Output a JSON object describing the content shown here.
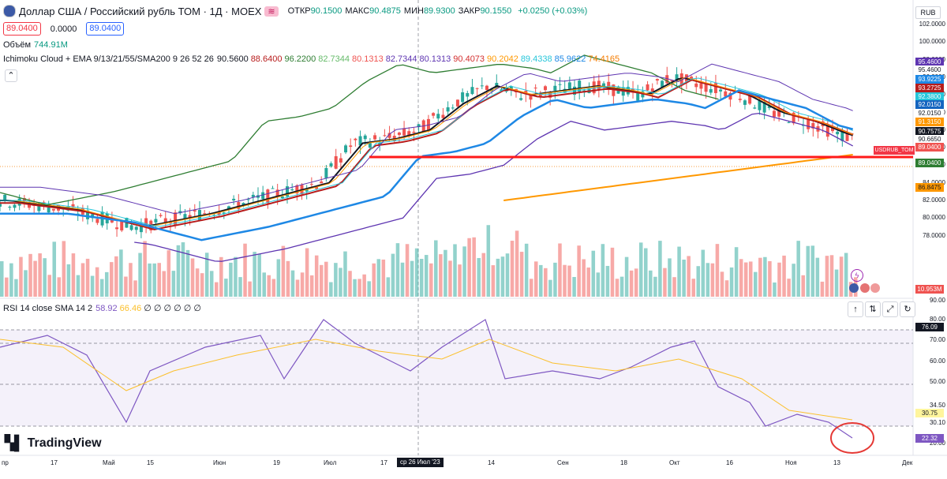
{
  "header": {
    "title": "Доллар США / Российский рубль ТОМ · 1Д · MOEX",
    "ohlc": [
      {
        "label": "ОТКР",
        "value": "90.1500"
      },
      {
        "label": "МАКС",
        "value": "90.4875"
      },
      {
        "label": "МИН",
        "value": "89.9300"
      },
      {
        "label": "ЗАКР",
        "value": "90.1550"
      }
    ],
    "change": "+0.0250 (+0.03%)",
    "bid": "89.0400",
    "spread": "0.0000",
    "ask": "89.0400",
    "tradingview_badge": "≋"
  },
  "indicators": {
    "volume_label": "Объём",
    "volume_value": "744.91M",
    "ichimoku_label": "Ichimoku Cloud + EMA 9/13/21/55/SMA200 9 26 52 26",
    "ichimoku_values": [
      {
        "v": "90.5600",
        "c": "#131722"
      },
      {
        "v": "88.6400",
        "c": "#b71c1c"
      },
      {
        "v": "96.2200",
        "c": "#2e7d32"
      },
      {
        "v": "82.7344",
        "c": "#66bb6a"
      },
      {
        "v": "80.1313",
        "c": "#ef5350"
      },
      {
        "v": "82.7344",
        "c": "#5e35b1"
      },
      {
        "v": "80.1313",
        "c": "#5e35b1"
      },
      {
        "v": "90.4073",
        "c": "#d32f2f"
      },
      {
        "v": "90.2042",
        "c": "#ff9800"
      },
      {
        "v": "89.4338",
        "c": "#26c6da"
      },
      {
        "v": "85.9622",
        "c": "#1e88e5"
      },
      {
        "v": "74.4165",
        "c": "#f57c00"
      }
    ],
    "rsi_label": "RSI 14 close SMA 14 2",
    "rsi_values": [
      {
        "v": "58.92",
        "c": "#7e57c2"
      },
      {
        "v": "66.46",
        "c": "#fbc02d"
      },
      {
        "v": "∅ ∅ ∅ ∅ ∅ ∅",
        "c": "#131722"
      }
    ]
  },
  "currency": "RUB",
  "price_axis": [
    "102.0000",
    "100.0000",
    "98.0000",
    "96.0000",
    "94.0000",
    "92.0000",
    "90.0000",
    "88.0000",
    "86.0000",
    "84.0000",
    "82.0000",
    "80.0000",
    "78.0000"
  ],
  "price_axis_tail": "90.00",
  "price_tags": [
    {
      "v": "95.4600",
      "bg": "#5e35b1",
      "y": 78
    },
    {
      "v": "95.4600",
      "bg": "#ffffff",
      "fg": "#131722",
      "y": 88
    },
    {
      "v": "93.9225",
      "bg": "#1e88e5",
      "y": 100
    },
    {
      "v": "93.2725",
      "bg": "#b71c1c",
      "y": 111
    },
    {
      "v": "92.3800",
      "bg": "#26c6da",
      "y": 122
    },
    {
      "v": "92.0150",
      "bg": "#1565c0",
      "y": 132
    },
    {
      "v": "92.0150",
      "bg": "#ffffff",
      "fg": "#131722",
      "y": 143
    },
    {
      "v": "91.3150",
      "bg": "#ff9800",
      "y": 154
    },
    {
      "v": "90.7575",
      "bg": "#131722",
      "y": 166
    },
    {
      "v": "90.6650",
      "bg": "#ffffff",
      "fg": "#131722",
      "y": 176
    },
    {
      "v": "89.0400",
      "bg": "#ef5350",
      "y": 186
    },
    {
      "v": "89.0400",
      "bg": "#2e7d32",
      "y": 206
    },
    {
      "v": "86.8475",
      "bg": "#ff9800",
      "fg": "#131722",
      "y": 237
    },
    {
      "v": "10.953M",
      "bg": "#ef5350",
      "y": 366
    }
  ],
  "symbol_tag": "USDRUB_TOM",
  "rsi_axis": [
    "80.00",
    "70.00",
    "60.00",
    "50.00",
    "34.50",
    "30.10",
    "20.00"
  ],
  "rsi_tags": [
    {
      "v": "76.09",
      "bg": "#131722",
      "y": 414
    },
    {
      "v": "30.75",
      "bg": "#fff59d",
      "fg": "#131722",
      "y": 523
    },
    {
      "v": "22.32",
      "bg": "#7e57c2",
      "y": 555
    }
  ],
  "x_axis": [
    {
      "t": "пр",
      "x": 2
    },
    {
      "t": "17",
      "x": 64
    },
    {
      "t": "Май",
      "x": 130
    },
    {
      "t": "15",
      "x": 186
    },
    {
      "t": "Июн",
      "x": 270
    },
    {
      "t": "19",
      "x": 346
    },
    {
      "t": "Июл",
      "x": 410
    },
    {
      "t": "17",
      "x": 482
    },
    {
      "t": "14",
      "x": 618
    },
    {
      "t": "Сен",
      "x": 706
    },
    {
      "t": "18",
      "x": 786
    },
    {
      "t": "Окт",
      "x": 848
    },
    {
      "t": "16",
      "x": 920
    },
    {
      "t": "Ноя",
      "x": 995
    },
    {
      "t": "13",
      "x": 1056
    },
    {
      "t": "Дек",
      "x": 1143
    }
  ],
  "crosshair_date": "ср 26 Июл '23",
  "logo_text": "TradingView",
  "toolbar": {
    "up": "↑",
    "swap": "⇅",
    "expand": "⤢",
    "loop": "↻",
    "collapse": "⌃"
  }
}
